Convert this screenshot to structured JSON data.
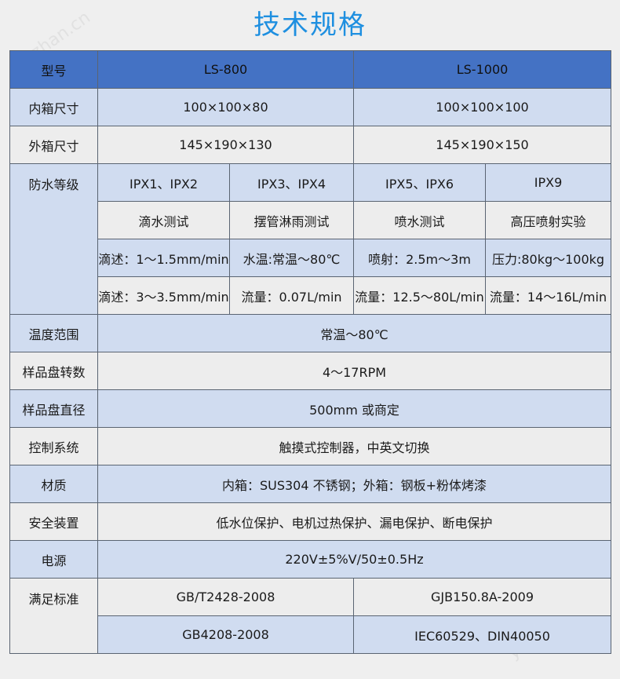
{
  "title": "技术规格",
  "watermark": "ybzhan.cn",
  "header": {
    "label": "型号",
    "models": [
      "LS-800",
      "LS-1000"
    ]
  },
  "rows": {
    "inner": {
      "label": "内箱尺寸",
      "values": [
        "100×100×80",
        "100×100×100"
      ]
    },
    "outer": {
      "label": "外箱尺寸",
      "values": [
        "145×190×130",
        "145×190×150"
      ]
    },
    "waterproof": {
      "label": "防水等级",
      "grades": [
        "IPX1、IPX2",
        "IPX3、IPX4",
        "IPX5、IPX6",
        "IPX9"
      ],
      "tests": [
        "滴水测试",
        "摆管淋雨测试",
        "喷水测试",
        "高压喷射实验"
      ],
      "params1": [
        "滴述：1～1.5mm/min",
        "水温:常温～80℃",
        "喷射：2.5m～3m",
        "压力:80kg～100kg"
      ],
      "params2": [
        "滴述：3～3.5mm/min",
        "流量：0.07L/min",
        "流量：12.5～80L/min",
        "流量：14～16L/min"
      ]
    },
    "temp": {
      "label": "温度范围",
      "value": "常温～80℃"
    },
    "rpm": {
      "label": "样品盘转数",
      "value": "4～17RPM"
    },
    "diameter": {
      "label": "样品盘直径",
      "value": "500mm 或商定"
    },
    "control": {
      "label": "控制系统",
      "value": "触摸式控制器，中英文切换"
    },
    "material": {
      "label": "材质",
      "value": "内箱：SUS304 不锈钢；外箱：钢板+粉体烤漆"
    },
    "safety": {
      "label": "安全装置",
      "value": "低水位保护、电机过热保护、漏电保护、断电保护"
    },
    "power": {
      "label": "电源",
      "value": "220V±5%V/50±0.5Hz"
    },
    "standards": {
      "label": "满足标准",
      "values": [
        "GB/T2428-2008",
        "GJB150.8A-2009",
        "GB4208-2008",
        "IEC60529、DIN40050"
      ]
    }
  },
  "colors": {
    "header": "#4472c4",
    "row_blue": "#d0dcf0",
    "row_gray": "#ededed",
    "title": "#1e8fe0"
  }
}
